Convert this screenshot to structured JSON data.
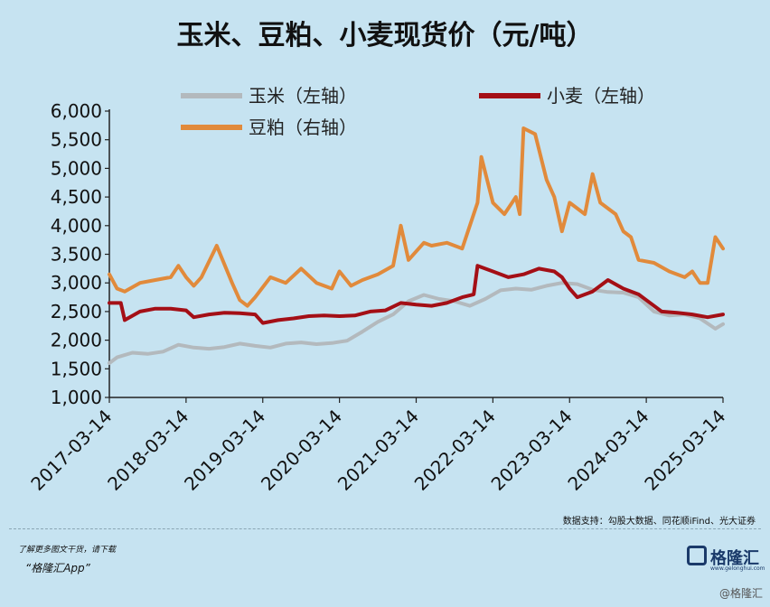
{
  "title": "玉米、豆粕、小麦现货价（元/吨）",
  "source_note": "数据支持：勾股大数据、同花顺iFind、光大证券",
  "promo": {
    "line1": "了解更多图文干货，请下载",
    "line2": "“格隆汇App”"
  },
  "logo": {
    "name": "格隆汇",
    "url": "www.gelonghui.com"
  },
  "watermark": "@格隆汇",
  "colors": {
    "corn": "#b3b9bd",
    "wheat": "#a40f16",
    "soymeal": "#e18a3b",
    "background": "#c6e3f1"
  },
  "chart_data": {
    "type": "line",
    "ylim": [
      1000,
      6000
    ],
    "yticks": [
      "1,000",
      "1,500",
      "2,000",
      "2,500",
      "3,000",
      "3,500",
      "4,000",
      "4,500",
      "5,000",
      "5,500",
      "6,000"
    ],
    "xlim": [
      2017.2,
      2025.2
    ],
    "xtick_labels": [
      "2017-03-14",
      "2018-03-14",
      "2019-03-14",
      "2020-03-14",
      "2021-03-14",
      "2022-03-14",
      "2023-03-14",
      "2024-03-14",
      "2025-03-14"
    ],
    "grid": false,
    "legend_position": "top",
    "series": [
      {
        "name": "玉米（左轴）",
        "key": "corn",
        "x": [
          2017.2,
          2017.3,
          2017.5,
          2017.7,
          2017.9,
          2018.1,
          2018.3,
          2018.5,
          2018.7,
          2018.9,
          2019.1,
          2019.3,
          2019.5,
          2019.7,
          2019.9,
          2020.1,
          2020.3,
          2020.5,
          2020.7,
          2020.9,
          2021.1,
          2021.3,
          2021.5,
          2021.7,
          2021.9,
          2022.1,
          2022.3,
          2022.5,
          2022.7,
          2022.9,
          2023.1,
          2023.3,
          2023.5,
          2023.7,
          2023.9,
          2024.1,
          2024.3,
          2024.5,
          2024.7,
          2024.9,
          2025.1,
          2025.2
        ],
        "values": [
          1600,
          1700,
          1780,
          1760,
          1800,
          1920,
          1870,
          1850,
          1880,
          1940,
          1900,
          1870,
          1940,
          1960,
          1930,
          1950,
          1990,
          2150,
          2320,
          2450,
          2680,
          2790,
          2720,
          2680,
          2600,
          2720,
          2870,
          2900,
          2880,
          2950,
          3000,
          2980,
          2880,
          2840,
          2830,
          2750,
          2500,
          2430,
          2450,
          2380,
          2200,
          2280
        ]
      },
      {
        "name": "小麦（左轴）",
        "key": "wheat",
        "x": [
          2017.2,
          2017.35,
          2017.4,
          2017.6,
          2017.8,
          2018.0,
          2018.2,
          2018.3,
          2018.5,
          2018.7,
          2018.9,
          2019.1,
          2019.2,
          2019.4,
          2019.6,
          2019.8,
          2020.0,
          2020.2,
          2020.4,
          2020.6,
          2020.8,
          2021.0,
          2021.2,
          2021.4,
          2021.6,
          2021.8,
          2021.95,
          2022.0,
          2022.2,
          2022.4,
          2022.6,
          2022.8,
          2023.0,
          2023.1,
          2023.2,
          2023.3,
          2023.5,
          2023.7,
          2023.9,
          2024.1,
          2024.2,
          2024.4,
          2024.6,
          2024.8,
          2025.0,
          2025.2
        ],
        "values": [
          2650,
          2650,
          2350,
          2500,
          2550,
          2550,
          2520,
          2400,
          2450,
          2480,
          2470,
          2450,
          2300,
          2350,
          2380,
          2420,
          2430,
          2420,
          2430,
          2500,
          2520,
          2650,
          2620,
          2600,
          2650,
          2750,
          2800,
          3300,
          3200,
          3100,
          3150,
          3250,
          3200,
          3100,
          2900,
          2750,
          2850,
          3050,
          2900,
          2800,
          2700,
          2500,
          2480,
          2450,
          2400,
          2450
        ]
      },
      {
        "name": "豆粕（右轴）",
        "key": "soymeal",
        "x": [
          2017.2,
          2017.3,
          2017.4,
          2017.6,
          2017.8,
          2018.0,
          2018.1,
          2018.2,
          2018.3,
          2018.4,
          2018.6,
          2018.8,
          2018.9,
          2019.0,
          2019.1,
          2019.3,
          2019.5,
          2019.7,
          2019.9,
          2020.1,
          2020.2,
          2020.35,
          2020.5,
          2020.7,
          2020.9,
          2021.0,
          2021.1,
          2021.3,
          2021.4,
          2021.6,
          2021.8,
          2022.0,
          2022.05,
          2022.2,
          2022.35,
          2022.5,
          2022.55,
          2022.6,
          2022.75,
          2022.9,
          2023.0,
          2023.1,
          2023.2,
          2023.4,
          2023.5,
          2023.6,
          2023.8,
          2023.9,
          2024.0,
          2024.1,
          2024.3,
          2024.5,
          2024.7,
          2024.8,
          2024.9,
          2025.0,
          2025.1,
          2025.2
        ],
        "values": [
          3150,
          2900,
          2850,
          3000,
          3050,
          3100,
          3300,
          3100,
          2950,
          3100,
          3650,
          3000,
          2700,
          2600,
          2750,
          3100,
          3000,
          3250,
          3000,
          2900,
          3200,
          2950,
          3050,
          3150,
          3300,
          4000,
          3400,
          3700,
          3650,
          3700,
          3600,
          4400,
          5200,
          4400,
          4200,
          4500,
          4200,
          5700,
          5600,
          4800,
          4500,
          3900,
          4400,
          4200,
          4900,
          4400,
          4200,
          3900,
          3800,
          3400,
          3350,
          3200,
          3100,
          3200,
          3000,
          3000,
          3800,
          3600
        ]
      }
    ]
  }
}
